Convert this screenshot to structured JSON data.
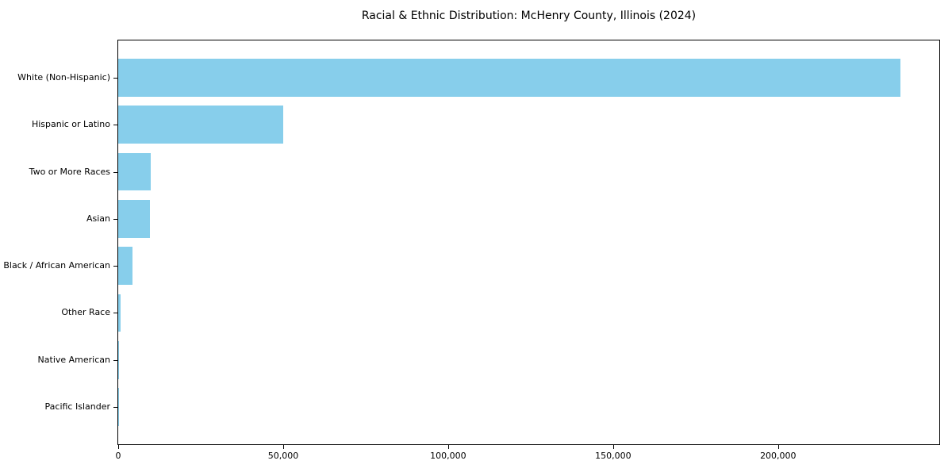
{
  "title": "Racial & Ethnic Distribution: McHenry County, Illinois (2024)",
  "colors": {
    "bar": "#87CEEB",
    "text": "#000000",
    "spine": "#000000",
    "background": "#ffffff"
  },
  "chart_data": {
    "type": "bar",
    "orientation": "horizontal",
    "title": "Racial & Ethnic Distribution: McHenry County, Illinois (2024)",
    "xlabel": "",
    "ylabel": "",
    "categories": [
      "White (Non-Hispanic)",
      "Hispanic or Latino",
      "Two or More Races",
      "Asian",
      "Black / African American",
      "Other Race",
      "Native American",
      "Pacific Islander"
    ],
    "values": [
      237000,
      50100,
      9800,
      9600,
      4250,
      750,
      120,
      30
    ],
    "bar_color": "#87CEEB",
    "xlim": [
      0,
      248850
    ],
    "xticks": [
      0,
      50000,
      100000,
      150000,
      200000
    ],
    "xtick_labels": [
      "0",
      "50,000",
      "100,000",
      "150,000",
      "200,000"
    ],
    "grid": false,
    "legend": null
  }
}
